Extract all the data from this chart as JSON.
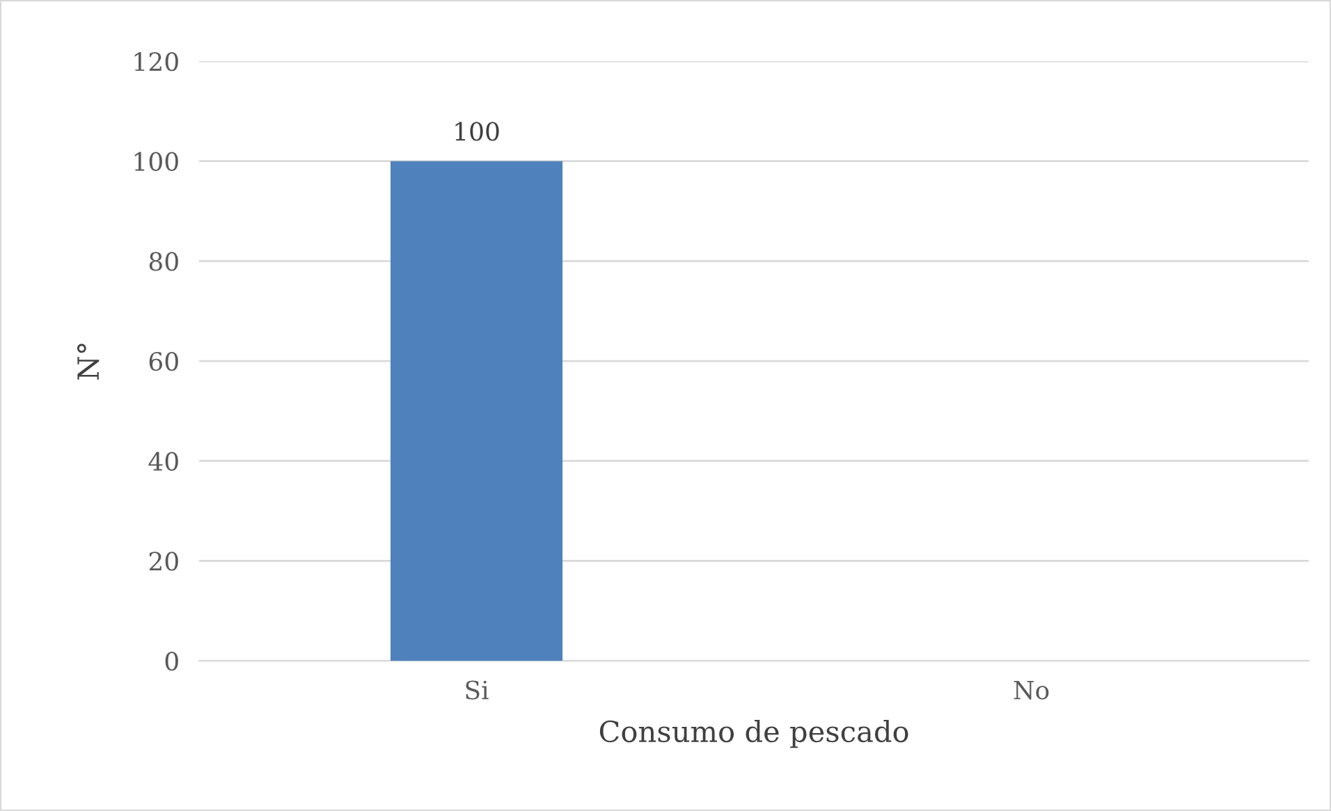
{
  "chart_data": {
    "type": "bar",
    "xlabel": "Consumo de pescado",
    "ylabel": "N°",
    "categories": [
      "Si",
      "No"
    ],
    "values": [
      100,
      0
    ],
    "value_labels": [
      "100",
      null
    ],
    "color": "#4f81bd",
    "ylim": [
      0,
      120
    ],
    "yticks": [
      0,
      20,
      40,
      60,
      80,
      100,
      120
    ],
    "grid": "y",
    "legend": false
  }
}
